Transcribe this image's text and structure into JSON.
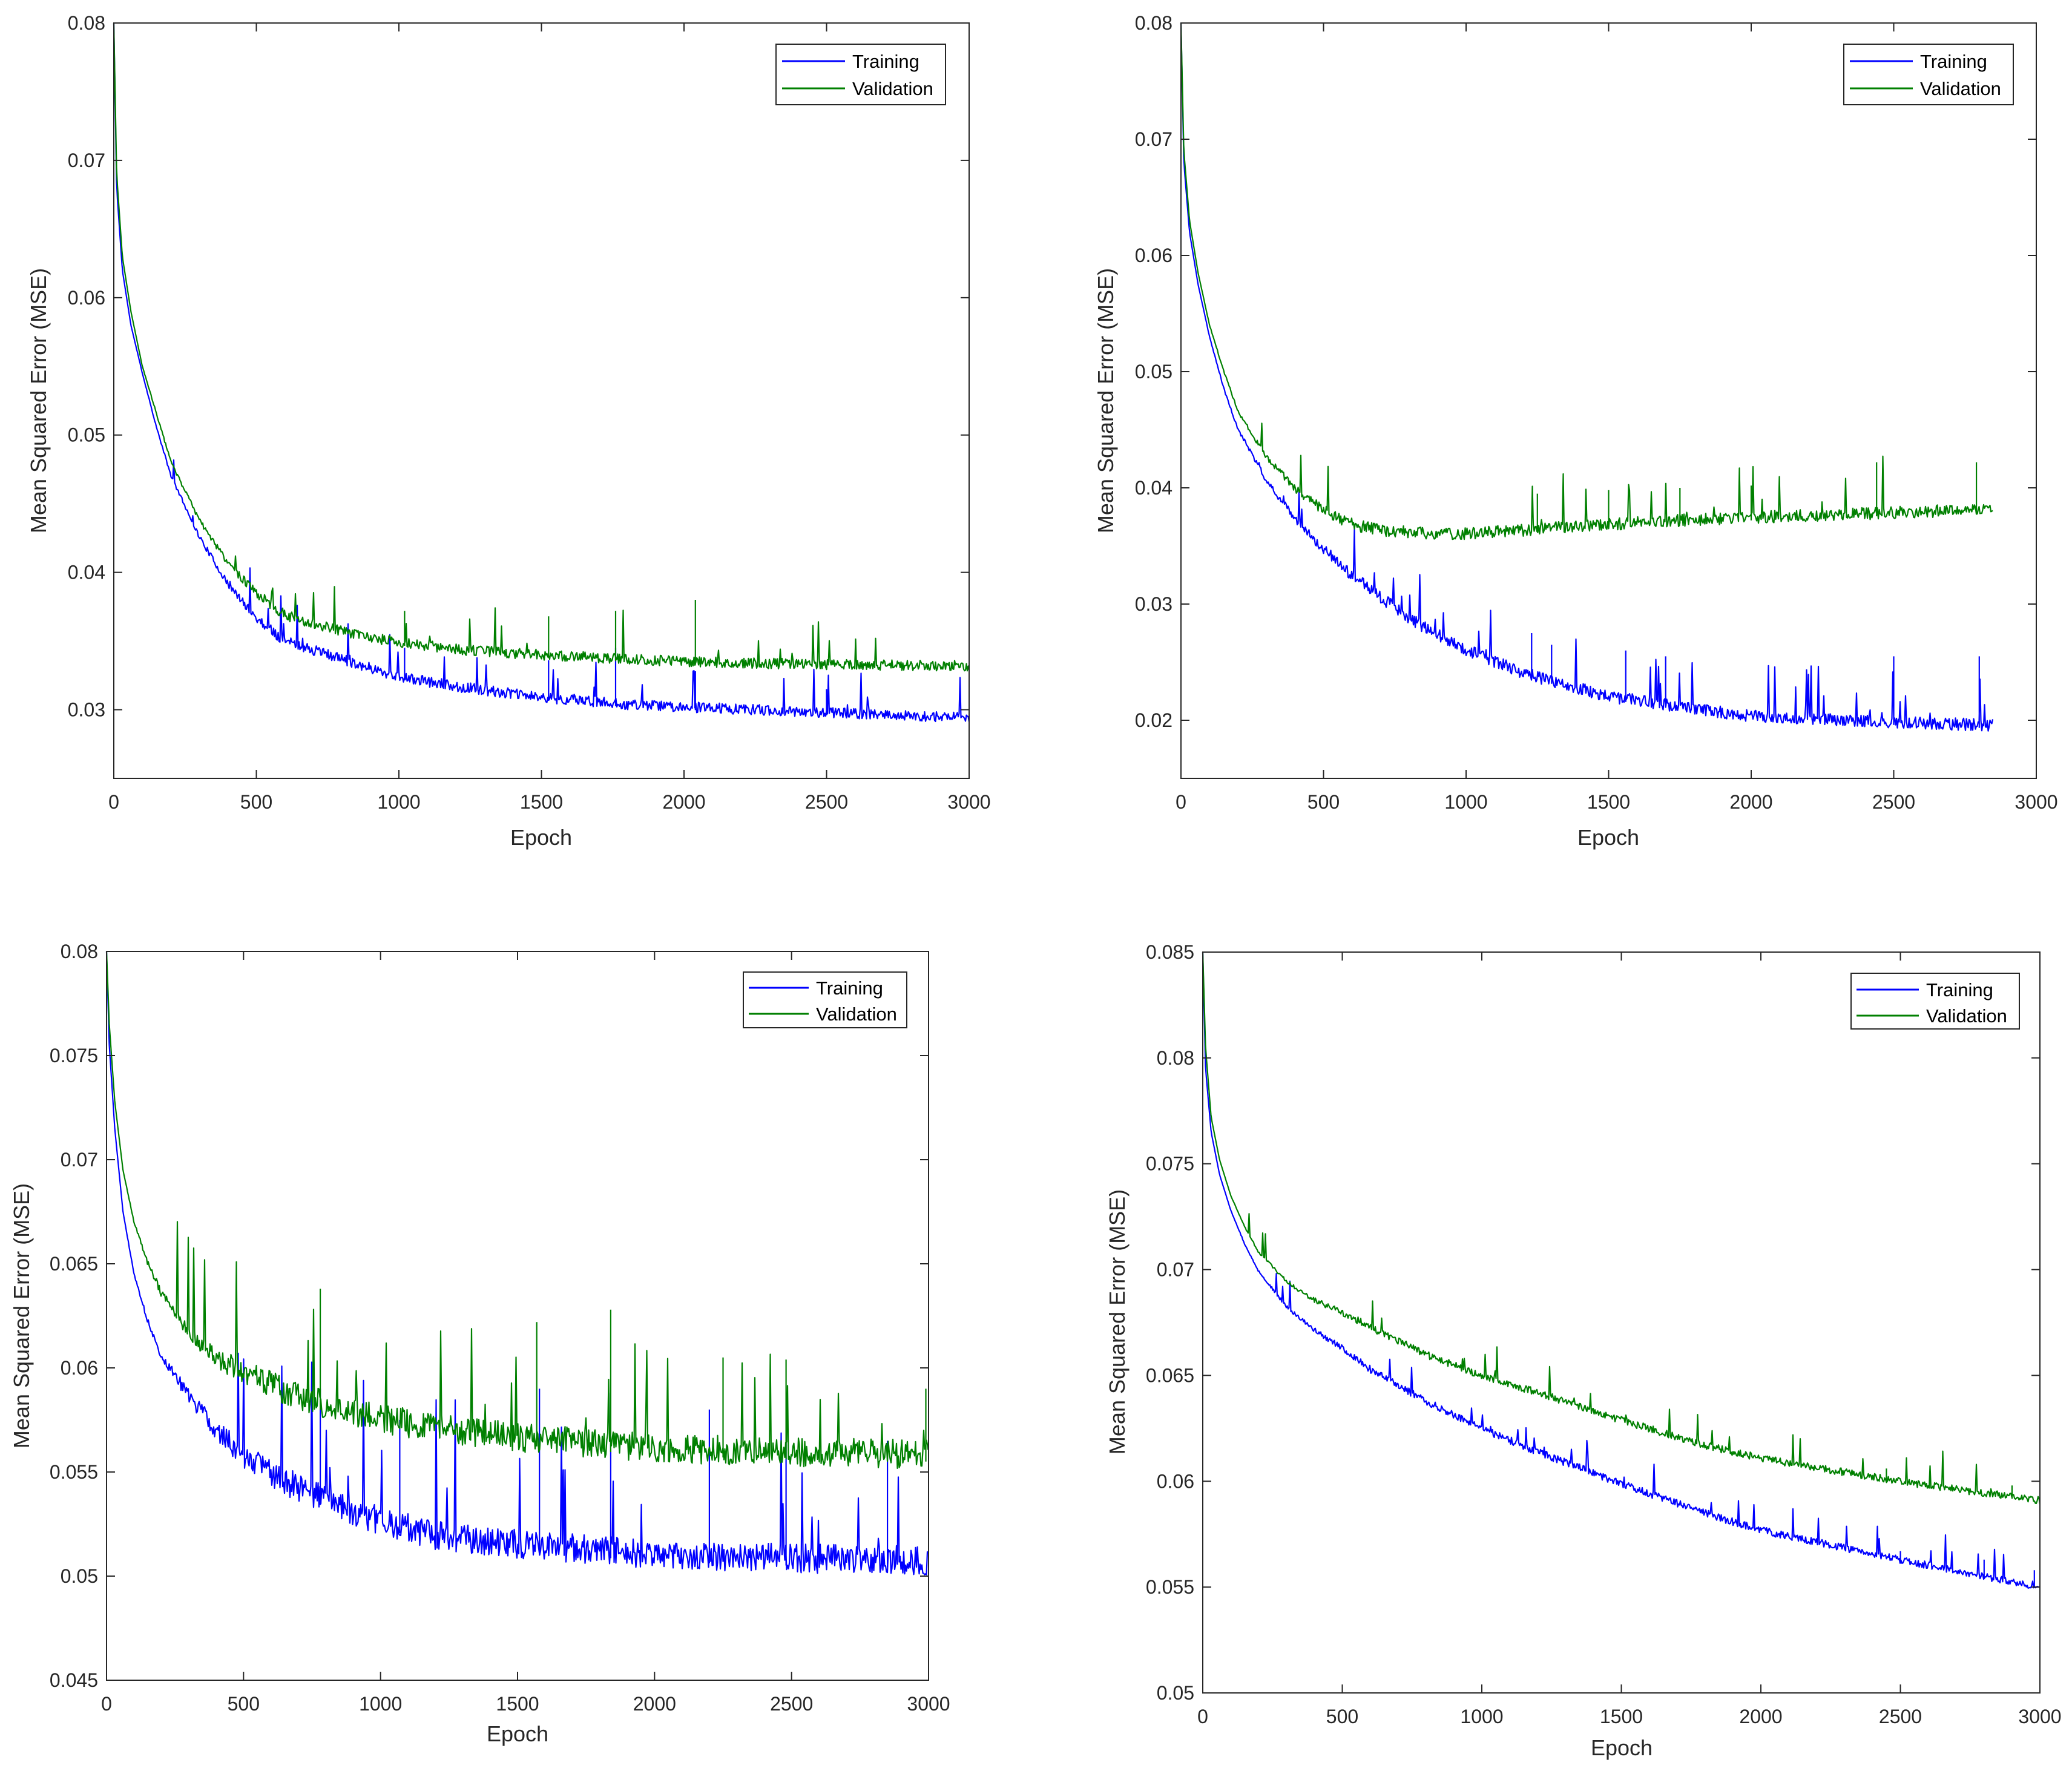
{
  "colors": {
    "training": "#0000ff",
    "validation": "#008000",
    "axis": "#262626"
  },
  "chart_data": [
    {
      "type": "line",
      "xlabel": "Epoch",
      "ylabel": "Mean Squared Error (MSE)",
      "xlim": [
        0,
        3000
      ],
      "ylim": [
        0.025,
        0.08
      ],
      "xticks": [
        0,
        500,
        1000,
        1500,
        2000,
        2500,
        3000
      ],
      "xtick_labels": [
        "0",
        "500",
        "1000",
        "1500",
        "2000",
        "2500",
        "3000"
      ],
      "yticks": [
        0.03,
        0.04,
        0.05,
        0.06,
        0.07,
        0.08
      ],
      "ytick_labels": [
        "0.03",
        "0.04",
        "0.05",
        "0.06",
        "0.07",
        "0.08"
      ],
      "legend": [
        "Training",
        "Validation"
      ],
      "legend_location": "top-right",
      "series": [
        {
          "name": "Training",
          "x": [
            0,
            10,
            30,
            60,
            100,
            150,
            200,
            300,
            400,
            500,
            600,
            800,
            1000,
            1200,
            1500,
            1800,
            2000,
            2500,
            3000
          ],
          "values": [
            0.08,
            0.068,
            0.062,
            0.058,
            0.0545,
            0.0505,
            0.047,
            0.0425,
            0.039,
            0.0365,
            0.0348,
            0.0335,
            0.0322,
            0.0315,
            0.0307,
            0.0302,
            0.03,
            0.0296,
            0.0292
          ],
          "spikes": [
            [
              1020,
              0.0345
            ],
            [
              1525,
              0.0336
            ],
            [
              1760,
              0.0345
            ],
            [
              2040,
              0.0328
            ],
            [
              2500,
              0.0315
            ]
          ]
        },
        {
          "name": "Validation",
          "x": [
            0,
            10,
            30,
            60,
            100,
            150,
            200,
            300,
            400,
            500,
            600,
            800,
            1000,
            1200,
            1500,
            1800,
            2000,
            2500,
            3000
          ],
          "values": [
            0.08,
            0.069,
            0.063,
            0.059,
            0.055,
            0.0515,
            0.048,
            0.0437,
            0.0405,
            0.0383,
            0.0367,
            0.0355,
            0.0347,
            0.0342,
            0.0338,
            0.0335,
            0.0333,
            0.0331,
            0.033
          ],
          "spikes": [
            [
              1020,
              0.0372
            ],
            [
              1525,
              0.0368
            ],
            [
              1760,
              0.0372
            ],
            [
              2040,
              0.038
            ]
          ]
        }
      ]
    },
    {
      "type": "line",
      "xlabel": "Epoch",
      "ylabel": "Mean Squared Error (MSE)",
      "xlim": [
        0,
        3000
      ],
      "ylim": [
        0.015,
        0.08
      ],
      "xticks": [
        0,
        500,
        1000,
        1500,
        2000,
        2500,
        3000
      ],
      "xtick_labels": [
        "0",
        "500",
        "1000",
        "1500",
        "2000",
        "2500",
        "3000"
      ],
      "yticks": [
        0.02,
        0.03,
        0.04,
        0.05,
        0.06,
        0.07,
        0.08
      ],
      "ytick_labels": [
        "0.02",
        "0.03",
        "0.04",
        "0.05",
        "0.06",
        "0.07",
        "0.08"
      ],
      "legend": [
        "Training",
        "Validation"
      ],
      "legend_location": "top-right",
      "series": [
        {
          "name": "Training",
          "x": [
            0,
            10,
            30,
            60,
            100,
            150,
            200,
            300,
            400,
            500,
            600,
            800,
            1000,
            1200,
            1500,
            1800,
            2000,
            2500,
            2850
          ],
          "values": [
            0.08,
            0.068,
            0.062,
            0.0575,
            0.053,
            0.0485,
            0.045,
            0.0405,
            0.0372,
            0.0345,
            0.0322,
            0.0285,
            0.0258,
            0.0238,
            0.0218,
            0.0207,
            0.0201,
            0.0196,
            0.0193
          ],
          "spikes": [
            [
              1230,
              0.0275
            ],
            [
              1300,
              0.0265
            ],
            [
              1560,
              0.026
            ],
            [
              1700,
              0.0255
            ],
            [
              2500,
              0.0255
            ],
            [
              2800,
              0.0255
            ]
          ]
        },
        {
          "name": "Validation",
          "x": [
            0,
            10,
            30,
            60,
            100,
            150,
            200,
            300,
            400,
            500,
            600,
            700,
            800,
            1000,
            1200,
            1500,
            1800,
            2000,
            2500,
            2850
          ],
          "values": [
            0.08,
            0.069,
            0.063,
            0.0585,
            0.054,
            0.05,
            0.0465,
            0.0425,
            0.0398,
            0.0378,
            0.0366,
            0.0361,
            0.0359,
            0.0358,
            0.0361,
            0.0366,
            0.037,
            0.0372,
            0.0376,
            0.0378
          ],
          "spikes": [
            [
              1250,
              0.0395
            ],
            [
              1500,
              0.0398
            ],
            [
              1750,
              0.04
            ],
            [
              2000,
              0.0402
            ],
            [
              2440,
              0.0422
            ],
            [
              2790,
              0.0422
            ]
          ]
        }
      ]
    },
    {
      "type": "line",
      "xlabel": "Epoch",
      "ylabel": "Mean Squared Error (MSE)",
      "xlim": [
        0,
        3000
      ],
      "ylim": [
        0.045,
        0.08
      ],
      "xticks": [
        0,
        500,
        1000,
        1500,
        2000,
        2500,
        3000
      ],
      "xtick_labels": [
        "0",
        "500",
        "1000",
        "1500",
        "2000",
        "2500",
        "3000"
      ],
      "yticks": [
        0.045,
        0.05,
        0.055,
        0.06,
        0.065,
        0.07,
        0.075,
        0.08
      ],
      "ytick_labels": [
        "0.045",
        "0.05",
        "0.055",
        "0.06",
        "0.065",
        "0.07",
        "0.075",
        "0.08"
      ],
      "legend": [
        "Training",
        "Validation"
      ],
      "legend_location": "top-right",
      "series": [
        {
          "name": "Training",
          "x": [
            0,
            10,
            30,
            60,
            100,
            150,
            200,
            300,
            400,
            500,
            600,
            800,
            1000,
            1200,
            1500,
            1800,
            2000,
            2500,
            3000
          ],
          "values": [
            0.08,
            0.0755,
            0.0715,
            0.0675,
            0.0645,
            0.0622,
            0.0605,
            0.0585,
            0.0568,
            0.0555,
            0.0545,
            0.0533,
            0.0523,
            0.0516,
            0.0512,
            0.0509,
            0.0507,
            0.0505,
            0.0504
          ],
          "spikes": [
            [
              780,
              0.059
            ],
            [
              1070,
              0.0575
            ],
            [
              1580,
              0.059
            ],
            [
              1840,
              0.0588
            ],
            [
              2200,
              0.058
            ],
            [
              2480,
              0.0575
            ],
            [
              2850,
              0.0565
            ]
          ]
        },
        {
          "name": "Validation",
          "x": [
            0,
            10,
            30,
            60,
            100,
            150,
            200,
            300,
            400,
            500,
            600,
            800,
            1000,
            1200,
            1500,
            1800,
            2000,
            2500,
            3000
          ],
          "values": [
            0.08,
            0.0765,
            0.0728,
            0.0695,
            0.067,
            0.065,
            0.0635,
            0.0615,
            0.0603,
            0.0594,
            0.0588,
            0.0579,
            0.0572,
            0.0568,
            0.0563,
            0.056,
            0.0558,
            0.0556,
            0.0555
          ],
          "spikes": [
            [
              780,
              0.0638
            ],
            [
              1570,
              0.0622
            ],
            [
              1840,
              0.0628
            ],
            [
              2250,
              0.0605
            ],
            [
              2480,
              0.0604
            ],
            [
              2990,
              0.059
            ]
          ]
        }
      ]
    },
    {
      "type": "line",
      "xlabel": "Epoch",
      "ylabel": "Mean Squared Error (MSE)",
      "xlim": [
        0,
        3000
      ],
      "ylim": [
        0.05,
        0.085
      ],
      "xticks": [
        0,
        500,
        1000,
        1500,
        2000,
        2500,
        3000
      ],
      "xtick_labels": [
        "0",
        "500",
        "1000",
        "1500",
        "2000",
        "2500",
        "3000"
      ],
      "yticks": [
        0.05,
        0.055,
        0.06,
        0.065,
        0.07,
        0.075,
        0.08,
        0.085
      ],
      "ytick_labels": [
        "0.05",
        "0.055",
        "0.06",
        "0.065",
        "0.07",
        "0.075",
        "0.08",
        "0.085"
      ],
      "legend": [
        "Training",
        "Validation"
      ],
      "legend_location": "top-right",
      "series": [
        {
          "name": "Training",
          "x": [
            0,
            10,
            30,
            60,
            100,
            150,
            200,
            300,
            400,
            500,
            600,
            800,
            1000,
            1200,
            1500,
            1800,
            2000,
            2500,
            3000
          ],
          "values": [
            0.085,
            0.0795,
            0.0765,
            0.0745,
            0.0728,
            0.0712,
            0.0699,
            0.0682,
            0.0671,
            0.0662,
            0.0652,
            0.0637,
            0.0624,
            0.0613,
            0.0598,
            0.0584,
            0.0576,
            0.0562,
            0.0549
          ],
          "spikes": [
            [
              2500,
              0.0567
            ],
            [
              2800,
              0.0563
            ],
            [
              2980,
              0.0558
            ]
          ]
        },
        {
          "name": "Validation",
          "x": [
            0,
            10,
            30,
            60,
            100,
            150,
            200,
            300,
            400,
            500,
            600,
            800,
            1000,
            1200,
            1500,
            1800,
            2000,
            2500,
            3000
          ],
          "values": [
            0.085,
            0.0805,
            0.0772,
            0.0752,
            0.0735,
            0.072,
            0.0708,
            0.0694,
            0.0685,
            0.0679,
            0.0672,
            0.0659,
            0.0649,
            0.0641,
            0.0628,
            0.0616,
            0.061,
            0.0599,
            0.059
          ],
          "spikes": [
            [
              2450,
              0.0606
            ],
            [
              2900,
              0.0598
            ]
          ]
        }
      ]
    }
  ]
}
